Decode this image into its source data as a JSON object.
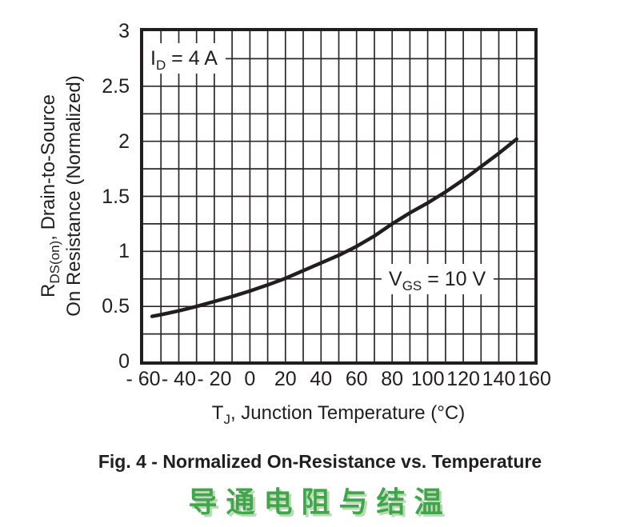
{
  "figure": {
    "caption": "Fig. 4 - Normalized On-Resistance vs. Temperature",
    "caption_cn": "导通电阻与结温",
    "caption_cn_color": "#42a44c",
    "ink_color": "#221e1f",
    "grid_color": "#2c2829"
  },
  "chart_data": {
    "type": "line",
    "title": "Fig. 4 - Normalized On-Resistance vs. Temperature",
    "xlabel": {
      "pre": "T",
      "sub": "J",
      "post": ", Junction Temperature (°C)"
    },
    "ylabel_line1": {
      "pre": "R",
      "sub": "DS(on)",
      "post": ", Drain-to-Source"
    },
    "ylabel_line2": "On Resistance (Normalized)",
    "x_axis": {
      "range": [
        -60,
        160
      ],
      "grid_step": 10,
      "ticks": [
        {
          "value": -60,
          "label": "- 60"
        },
        {
          "value": -40,
          "label": "- 40"
        },
        {
          "value": -20,
          "label": "- 20"
        },
        {
          "value": 0,
          "label": "0"
        },
        {
          "value": 20,
          "label": "20"
        },
        {
          "value": 40,
          "label": "40"
        },
        {
          "value": 60,
          "label": "60"
        },
        {
          "value": 80,
          "label": "80"
        },
        {
          "value": 100,
          "label": "100"
        },
        {
          "value": 120,
          "label": "120"
        },
        {
          "value": 140,
          "label": "140"
        },
        {
          "value": 160,
          "label": "160"
        }
      ]
    },
    "y_axis": {
      "range": [
        0,
        3
      ],
      "grid_step": 0.25,
      "ticks": [
        {
          "value": 3,
          "label": "3"
        },
        {
          "value": 2.5,
          "label": "2.5"
        },
        {
          "value": 2,
          "label": "2"
        },
        {
          "value": 1.5,
          "label": "1.5"
        },
        {
          "value": 1,
          "label": "1"
        },
        {
          "value": 0.5,
          "label": "0.5"
        },
        {
          "value": 0,
          "label": "0"
        }
      ]
    },
    "annotations": [
      {
        "pre": "I",
        "sub": "D",
        "post": " = 4 A"
      },
      {
        "pre": "V",
        "sub": "GS",
        "post": " = 10 V"
      }
    ],
    "series": [
      {
        "name": "Normalized RDS(on), VGS = 10 V, ID = 4 A",
        "points": [
          [
            -55,
            0.41
          ],
          [
            -50,
            0.425
          ],
          [
            -40,
            0.46
          ],
          [
            -30,
            0.5
          ],
          [
            -20,
            0.545
          ],
          [
            -10,
            0.59
          ],
          [
            0,
            0.64
          ],
          [
            10,
            0.695
          ],
          [
            20,
            0.755
          ],
          [
            30,
            0.825
          ],
          [
            40,
            0.895
          ],
          [
            50,
            0.965
          ],
          [
            60,
            1.045
          ],
          [
            70,
            1.14
          ],
          [
            80,
            1.25
          ],
          [
            90,
            1.35
          ],
          [
            100,
            1.44
          ],
          [
            110,
            1.54
          ],
          [
            120,
            1.65
          ],
          [
            130,
            1.77
          ],
          [
            140,
            1.89
          ],
          [
            150,
            2.02
          ]
        ]
      }
    ],
    "grid": "on",
    "legend": "none"
  }
}
